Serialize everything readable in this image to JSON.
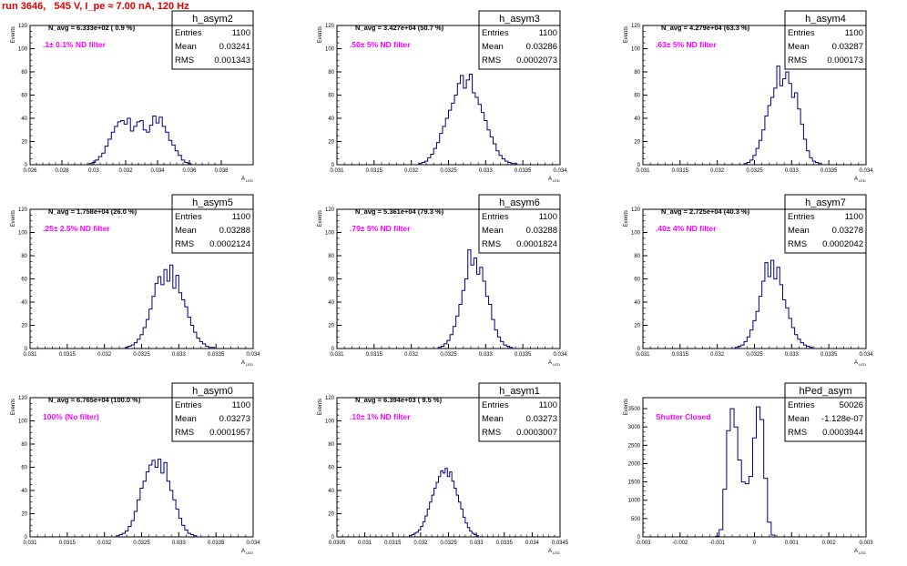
{
  "title": "run 3646,   545 V, I_pe ≈ 7.00 nA, 120 Hz",
  "colors": {
    "title": "#e00000",
    "histogram": "#000080",
    "annotation": "#ff00ff",
    "axis": "#000000"
  },
  "chart_data": [
    {
      "type": "bar",
      "name": "h_asym2",
      "stats": {
        "entries_label": "Entries",
        "entries": "1100",
        "mean_label": "Mean",
        "mean": "0.03241",
        "rms_label": "RMS",
        "rms": "0.001343"
      },
      "navg": "N_avg = 6.333e+02 ( 0.9 %)",
      "filter": ".1± 0.1% ND filter",
      "ylabel": "Events",
      "xlabel": "A",
      "xlabel_sub": "LED",
      "xlim": [
        0.026,
        0.04
      ],
      "ylim": [
        0,
        120
      ],
      "xticks": [
        0.026,
        0.028,
        0.03,
        0.032,
        0.034,
        0.036,
        0.038
      ],
      "xtick_labels": [
        "0.026",
        "0.028",
        "0.03",
        "0.032",
        "0.034",
        "0.036",
        "0.038"
      ],
      "yticks": [
        0,
        20,
        40,
        60,
        80,
        100,
        120
      ],
      "bins_start": 0.0297,
      "bin_width": 0.0002,
      "values": [
        1,
        2,
        4,
        7,
        10,
        16,
        22,
        28,
        33,
        37,
        38,
        35,
        40,
        29,
        33,
        37,
        38,
        30,
        28,
        34,
        42,
        36,
        41,
        33,
        28,
        21,
        17,
        12,
        8,
        4,
        2,
        1
      ]
    },
    {
      "type": "bar",
      "name": "h_asym3",
      "stats": {
        "entries_label": "Entries",
        "entries": "1100",
        "mean_label": "Mean",
        "mean": "0.03286",
        "rms_label": "RMS",
        "rms": "0.0002073"
      },
      "navg": "N_avg = 3.427e+04 (50.7 %)",
      "filter": ".50± 5% ND filter",
      "ylabel": "Events",
      "xlabel": "A",
      "xlabel_sub": "LED",
      "xlim": [
        0.031,
        0.034
      ],
      "ylim": [
        0,
        120
      ],
      "xticks": [
        0.031,
        0.0315,
        0.032,
        0.0325,
        0.033,
        0.0335,
        0.034
      ],
      "xtick_labels": [
        "0.031",
        "0.0315",
        "0.032",
        "0.0325",
        "0.033",
        "0.0335",
        "0.034"
      ],
      "yticks": [
        0,
        20,
        40,
        60,
        80,
        100,
        120
      ],
      "bins_start": 0.0321,
      "bin_width": 4e-05,
      "values": [
        1,
        2,
        3,
        6,
        9,
        14,
        19,
        27,
        33,
        40,
        47,
        53,
        60,
        70,
        77,
        66,
        73,
        78,
        62,
        58,
        52,
        45,
        38,
        30,
        24,
        18,
        12,
        8,
        5,
        3,
        2,
        1,
        1
      ]
    },
    {
      "type": "bar",
      "name": "h_asym4",
      "stats": {
        "entries_label": "Entries",
        "entries": "1100",
        "mean_label": "Mean",
        "mean": "0.03287",
        "rms_label": "RMS",
        "rms": "0.000173"
      },
      "navg": "N_avg = 4.279e+04 (63.3 %)",
      "filter": ".63± 5% ND filter",
      "ylabel": "Events",
      "xlabel": "A",
      "xlabel_sub": "LED",
      "xlim": [
        0.031,
        0.034
      ],
      "ylim": [
        0,
        120
      ],
      "xticks": [
        0.031,
        0.0315,
        0.032,
        0.0325,
        0.033,
        0.0335,
        0.034
      ],
      "xtick_labels": [
        "0.031",
        "0.0315",
        "0.032",
        "0.0325",
        "0.033",
        "0.0335",
        "0.034"
      ],
      "yticks": [
        0,
        20,
        40,
        60,
        80,
        100,
        120
      ],
      "bins_start": 0.03236,
      "bin_width": 4e-05,
      "values": [
        1,
        2,
        4,
        8,
        14,
        21,
        30,
        42,
        51,
        58,
        66,
        85,
        68,
        74,
        80,
        70,
        58,
        62,
        48,
        35,
        22,
        12,
        6,
        3,
        2,
        1
      ]
    },
    {
      "type": "bar",
      "name": "h_asym5",
      "stats": {
        "entries_label": "Entries",
        "entries": "1100",
        "mean_label": "Mean",
        "mean": "0.03288",
        "rms_label": "RMS",
        "rms": "0.0002124"
      },
      "navg": "N_avg = 1.758e+04 (26.0 %)",
      "filter": ".25± 2.5% ND filter",
      "ylabel": "Events",
      "xlabel": "A",
      "xlabel_sub": "LED",
      "xlim": [
        0.031,
        0.034
      ],
      "ylim": [
        0,
        120
      ],
      "xticks": [
        0.031,
        0.0315,
        0.032,
        0.0325,
        0.033,
        0.0335,
        0.034
      ],
      "xtick_labels": [
        "0.031",
        "0.0315",
        "0.032",
        "0.0325",
        "0.033",
        "0.0335",
        "0.034"
      ],
      "yticks": [
        0,
        20,
        40,
        60,
        80,
        100,
        120
      ],
      "bins_start": 0.03228,
      "bin_width": 4e-05,
      "values": [
        1,
        2,
        3,
        5,
        8,
        12,
        18,
        25,
        34,
        45,
        56,
        62,
        55,
        68,
        58,
        72,
        52,
        63,
        48,
        42,
        36,
        27,
        20,
        14,
        9,
        6,
        4,
        2,
        1,
        1
      ]
    },
    {
      "type": "bar",
      "name": "h_asym6",
      "stats": {
        "entries_label": "Entries",
        "entries": "1100",
        "mean_label": "Mean",
        "mean": "0.03288",
        "rms_label": "RMS",
        "rms": "0.0001824"
      },
      "navg": "N_avg = 5.361e+04 (79.3 %)",
      "filter": ".79± 5% ND filter",
      "ylabel": "Events",
      "xlabel": "A",
      "xlabel_sub": "LED",
      "xlim": [
        0.031,
        0.034
      ],
      "ylim": [
        0,
        120
      ],
      "xticks": [
        0.031,
        0.0315,
        0.032,
        0.0325,
        0.033,
        0.0335,
        0.034
      ],
      "xtick_labels": [
        "0.031",
        "0.0315",
        "0.032",
        "0.0325",
        "0.033",
        "0.0335",
        "0.034"
      ],
      "yticks": [
        0,
        20,
        40,
        60,
        80,
        100,
        120
      ],
      "bins_start": 0.03236,
      "bin_width": 4e-05,
      "values": [
        1,
        2,
        4,
        7,
        12,
        19,
        28,
        38,
        50,
        60,
        85,
        72,
        78,
        64,
        70,
        58,
        45,
        38,
        25,
        16,
        10,
        6,
        3,
        2,
        1
      ]
    },
    {
      "type": "bar",
      "name": "h_asym7",
      "stats": {
        "entries_label": "Entries",
        "entries": "1100",
        "mean_label": "Mean",
        "mean": "0.03278",
        "rms_label": "RMS",
        "rms": "0.0002042"
      },
      "navg": "N_avg = 2.725e+04 (40.3 %)",
      "filter": ".40± 4% ND filter",
      "ylabel": "Events",
      "xlabel": "A",
      "xlabel_sub": "LED",
      "xlim": [
        0.031,
        0.034
      ],
      "ylim": [
        0,
        120
      ],
      "xticks": [
        0.031,
        0.0315,
        0.032,
        0.0325,
        0.033,
        0.0335,
        0.034
      ],
      "xtick_labels": [
        "0.031",
        "0.0315",
        "0.032",
        "0.0325",
        "0.033",
        "0.0335",
        "0.034"
      ],
      "yticks": [
        0,
        20,
        40,
        60,
        80,
        100,
        120
      ],
      "bins_start": 0.03224,
      "bin_width": 4e-05,
      "values": [
        1,
        2,
        3,
        6,
        10,
        16,
        24,
        32,
        45,
        58,
        74,
        62,
        76,
        60,
        70,
        55,
        42,
        35,
        26,
        18,
        12,
        8,
        5,
        3,
        2,
        1
      ]
    },
    {
      "type": "bar",
      "name": "h_asym0",
      "stats": {
        "entries_label": "Entries",
        "entries": "1100",
        "mean_label": "Mean",
        "mean": "0.03273",
        "rms_label": "RMS",
        "rms": "0.0001957"
      },
      "navg": "N_avg = 6.765e+04 (100.0 %)",
      "filter": "100% (No filter)",
      "ylabel": "Events",
      "xlabel": "A",
      "xlabel_sub": "LED",
      "xlim": [
        0.031,
        0.034
      ],
      "ylim": [
        0,
        120
      ],
      "xticks": [
        0.031,
        0.0315,
        0.032,
        0.0325,
        0.033,
        0.0335,
        0.034
      ],
      "xtick_labels": [
        "0.031",
        "0.0315",
        "0.032",
        "0.0325",
        "0.033",
        "0.0335",
        "0.034"
      ],
      "yticks": [
        0,
        20,
        40,
        60,
        80,
        100,
        120
      ],
      "bins_start": 0.03216,
      "bin_width": 4e-05,
      "values": [
        1,
        2,
        3,
        5,
        9,
        14,
        22,
        32,
        42,
        48,
        56,
        62,
        66,
        60,
        67,
        55,
        64,
        48,
        40,
        32,
        24,
        16,
        10,
        6,
        3,
        2,
        1
      ]
    },
    {
      "type": "bar",
      "name": "h_asym1",
      "stats": {
        "entries_label": "Entries",
        "entries": "1100",
        "mean_label": "Mean",
        "mean": "0.03273",
        "rms_label": "RMS",
        "rms": "0.0003007"
      },
      "navg": "N_avg = 6.394e+03 ( 9.5 %)",
      "filter": ".10± 1% ND filter",
      "ylabel": "Events",
      "xlabel": "A",
      "xlabel_sub": "LED",
      "xlim": [
        0.0305,
        0.0345
      ],
      "ylim": [
        0,
        120
      ],
      "xticks": [
        0.0305,
        0.031,
        0.0315,
        0.032,
        0.0325,
        0.033,
        0.0335,
        0.034,
        0.0345
      ],
      "xtick_labels": [
        "0.0305",
        "0.031",
        "0.0315",
        "0.032",
        "0.0325",
        "0.033",
        "0.0335",
        "0.034",
        "0.0345"
      ],
      "yticks": [
        0,
        20,
        40,
        60,
        80,
        100,
        120
      ],
      "bins_start": 0.0318,
      "bin_width": 4e-05,
      "values": [
        1,
        2,
        3,
        4,
        6,
        9,
        13,
        18,
        24,
        30,
        36,
        42,
        47,
        52,
        57,
        55,
        59,
        52,
        56,
        48,
        42,
        36,
        30,
        24,
        17,
        12,
        8,
        5,
        3,
        2,
        1
      ]
    },
    {
      "type": "bar",
      "name": "hPed_asym",
      "stats": {
        "entries_label": "Entries",
        "entries": "50026",
        "mean_label": "Mean",
        "mean": "-1.128e-07",
        "rms_label": "RMS",
        "rms": "0.0003944"
      },
      "navg": "",
      "filter": "Shutter Closed",
      "ylabel": "Events",
      "xlabel": "A",
      "xlabel_sub": "LED",
      "xlim": [
        -0.003,
        0.003
      ],
      "ylim": [
        0,
        3800
      ],
      "xticks": [
        -0.003,
        -0.002,
        -0.001,
        0,
        0.001,
        0.002,
        0.003
      ],
      "xtick_labels": [
        "-0.003",
        "-0.002",
        "-0.001",
        "0",
        "0.001",
        "0.002",
        "0.003"
      ],
      "yticks": [
        0,
        500,
        1000,
        1500,
        2000,
        2500,
        3000,
        3500
      ],
      "bins_start": -0.00105,
      "bin_width": 0.0001,
      "values": [
        20,
        200,
        1300,
        2900,
        3500,
        3000,
        2100,
        1500,
        1450,
        1650,
        2700,
        3550,
        3200,
        1600,
        400,
        50
      ]
    }
  ]
}
